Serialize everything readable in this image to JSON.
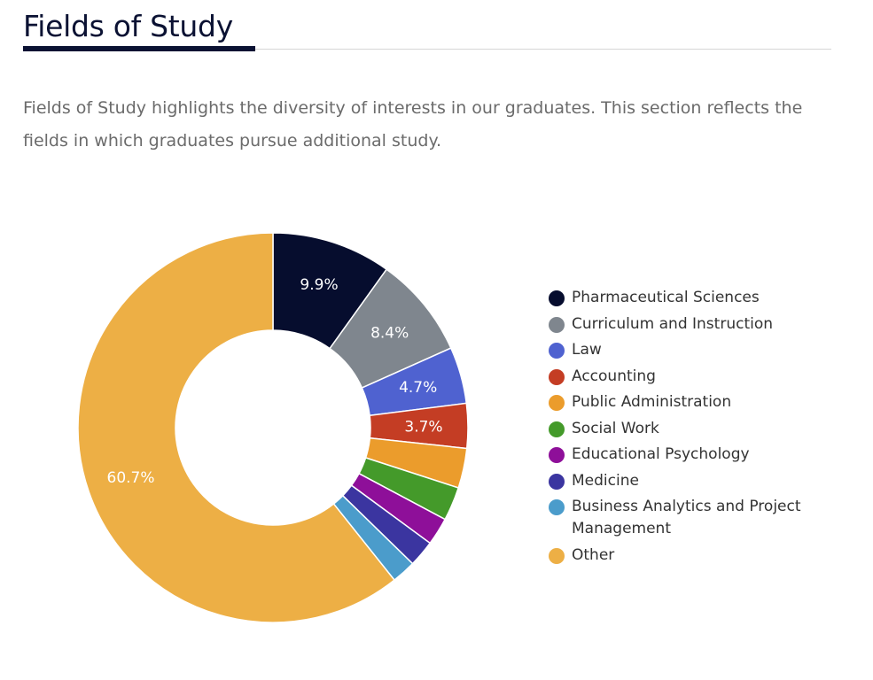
{
  "header": {
    "title": "Fields of Study"
  },
  "intro": {
    "text": "Fields of Study highlights the diversity of interests in our graduates. This section reflects the fields in which graduates pursue additional study."
  },
  "chart_data": {
    "type": "pie",
    "variant": "donut",
    "legend_position": "right",
    "series": [
      {
        "name": "Pharmaceutical Sciences",
        "value": 9.9,
        "label": "9.9%",
        "color": "#060d2e"
      },
      {
        "name": "Curriculum and Instruction",
        "value": 8.4,
        "label": "8.4%",
        "color": "#7f868e"
      },
      {
        "name": "Law",
        "value": 4.7,
        "label": "4.7%",
        "color": "#4f62d0"
      },
      {
        "name": "Accounting",
        "value": 3.7,
        "label": "3.7%",
        "color": "#c43d24"
      },
      {
        "name": "Public Administration",
        "value": 3.3,
        "label": "",
        "color": "#eb9c2c"
      },
      {
        "name": "Social Work",
        "value": 2.8,
        "label": "",
        "color": "#449a2a"
      },
      {
        "name": "Educational Psychology",
        "value": 2.3,
        "label": "",
        "color": "#8e0f99"
      },
      {
        "name": "Medicine",
        "value": 2.2,
        "label": "",
        "color": "#3b35a0"
      },
      {
        "name": "Business Analytics and Project Management",
        "value": 2.0,
        "label": "",
        "color": "#4b9ccb"
      },
      {
        "name": "Other",
        "value": 60.7,
        "label": "60.7%",
        "color": "#edaf45"
      }
    ]
  }
}
